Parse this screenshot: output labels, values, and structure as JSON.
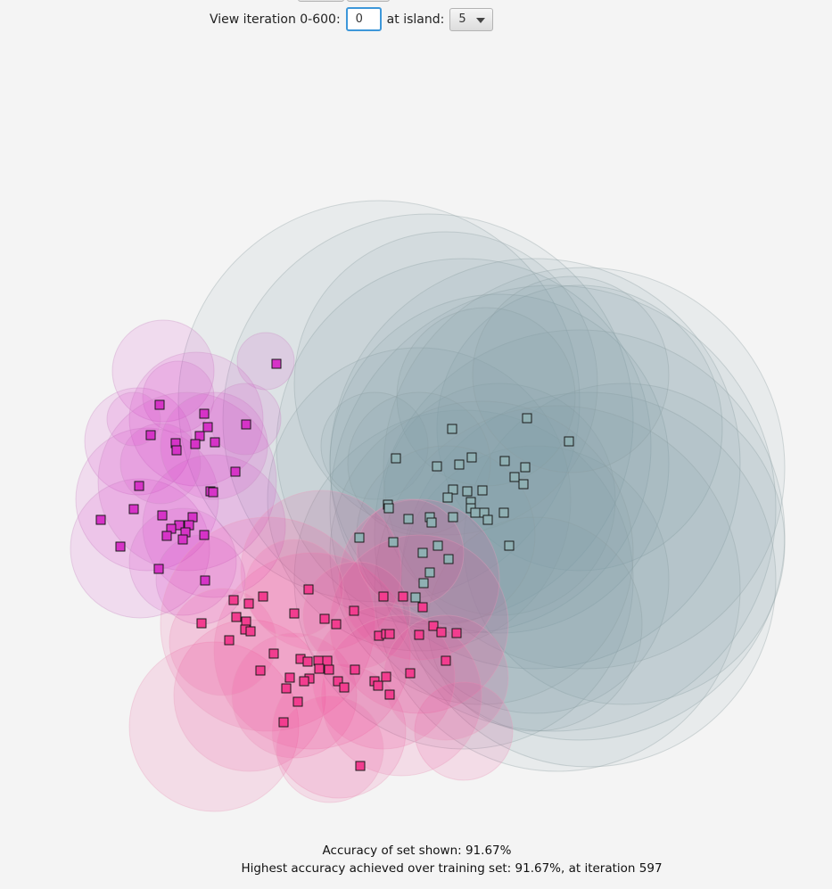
{
  "controls": {
    "iteration_label": "View iteration 0-600:",
    "iteration_value": "0",
    "island_label": "at island:",
    "island_value": "5"
  },
  "status": {
    "accuracy_shown": "Accuracy of set shown: 91.67%",
    "highest_accuracy": "Highest accuracy achieved over training set: 91.67%, at iteration 597"
  },
  "colors": {
    "background": "#f4f4f4",
    "class_teal": "#7e9ea3",
    "class_teal_point": "#8fb0b3",
    "class_magenta": "#d633c7",
    "class_pink": "#f23d8f",
    "input_focus": "#3d97d9"
  }
}
